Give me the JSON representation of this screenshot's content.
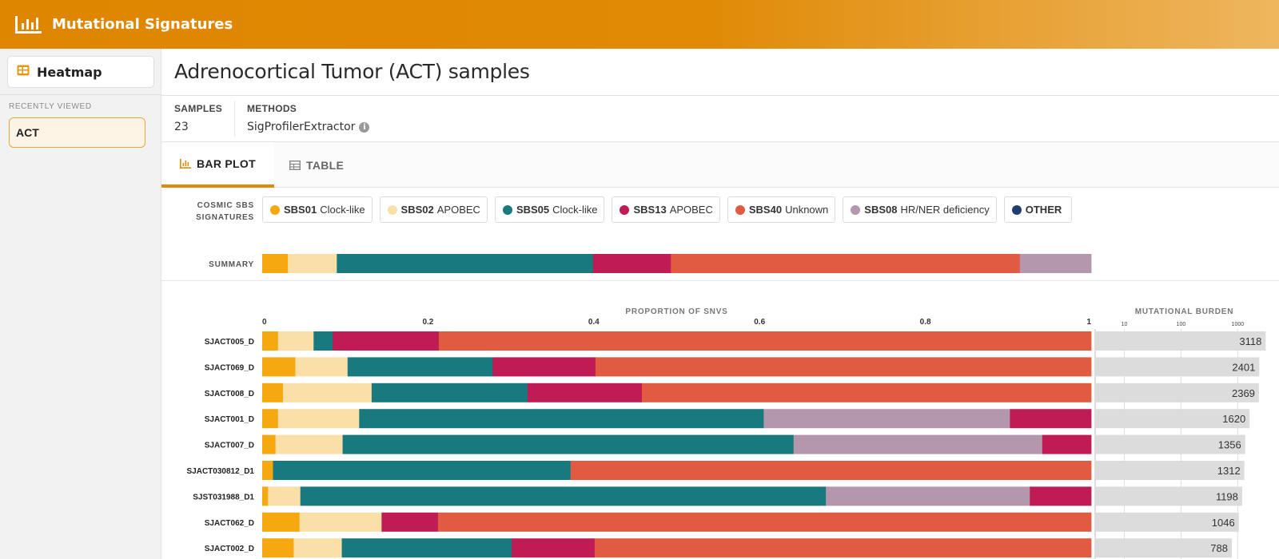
{
  "app": {
    "title": "Mutational Signatures",
    "logo_icon": "bar-chart-logo-icon"
  },
  "sidebar": {
    "heatmap_label": "Heatmap",
    "recent_label": "RECENTLY VIEWED",
    "recent_items": [
      "ACT"
    ]
  },
  "page": {
    "title": "Adrenocortical Tumor (ACT) samples"
  },
  "meta": {
    "samples_label": "SAMPLES",
    "samples_value": "23",
    "methods_label": "METHODS",
    "methods_value": "SigProfilerExtractor"
  },
  "tabs": {
    "bar_plot": "BAR PLOT",
    "table": "TABLE"
  },
  "legend": {
    "label_line1": "COSMIC SBS",
    "label_line2": "SIGNATURES",
    "items": [
      {
        "code": "SBS01",
        "name": "Clock-like",
        "color": "#f5a80f"
      },
      {
        "code": "SBS02",
        "name": "APOBEC",
        "color": "#fae0a8"
      },
      {
        "code": "SBS05",
        "name": "Clock-like",
        "color": "#187a7e"
      },
      {
        "code": "SBS13",
        "name": "APOBEC",
        "color": "#bf1b54"
      },
      {
        "code": "SBS40",
        "name": "Unknown",
        "color": "#e05b42"
      },
      {
        "code": "SBS08",
        "name": "HR/NER deficiency",
        "color": "#b497ad"
      },
      {
        "code": "OTHER",
        "name": "",
        "color": "#1f3d70"
      }
    ]
  },
  "chart_data": {
    "type": "bar",
    "orientation": "horizontal-stacked",
    "title": "",
    "summary_label": "SUMMARY",
    "xlabel": "PROPORTION OF SNVS",
    "xlim": [
      0,
      1
    ],
    "x_ticks": [
      "0",
      "0.2",
      "0.4",
      "0.6",
      "0.8",
      "1"
    ],
    "burden_label": "MUTATIONAL BURDEN",
    "burden_ticks": [
      "10",
      "100",
      "1000"
    ],
    "burden_scale": "log",
    "signature_order": [
      "SBS01",
      "SBS02",
      "SBS05",
      "SBS13",
      "SBS40",
      "SBS08",
      "OTHER"
    ],
    "colors": {
      "SBS01": "#f5a80f",
      "SBS02": "#fae0a8",
      "SBS05": "#187a7e",
      "SBS13": "#bf1b54",
      "SBS40": "#e05b42",
      "SBS08": "#b497ad",
      "OTHER": "#1f3d70"
    },
    "summary": [
      {
        "sig": "SBS01",
        "value": 0.031
      },
      {
        "sig": "SBS02",
        "value": 0.059
      },
      {
        "sig": "SBS05",
        "value": 0.309
      },
      {
        "sig": "SBS13",
        "value": 0.094
      },
      {
        "sig": "SBS40",
        "value": 0.421
      },
      {
        "sig": "SBS08",
        "value": 0.086
      }
    ],
    "samples": [
      {
        "name": "SJACT005_D",
        "burden": 3118,
        "segments": [
          {
            "sig": "SBS01",
            "value": 0.019
          },
          {
            "sig": "SBS02",
            "value": 0.043
          },
          {
            "sig": "SBS05",
            "value": 0.023
          },
          {
            "sig": "SBS13",
            "value": 0.128
          },
          {
            "sig": "SBS40",
            "value": 0.787
          }
        ]
      },
      {
        "name": "SJACT069_D",
        "burden": 2401,
        "segments": [
          {
            "sig": "SBS01",
            "value": 0.04
          },
          {
            "sig": "SBS02",
            "value": 0.063
          },
          {
            "sig": "SBS05",
            "value": 0.175
          },
          {
            "sig": "SBS13",
            "value": 0.124
          },
          {
            "sig": "SBS40",
            "value": 0.598
          }
        ]
      },
      {
        "name": "SJACT008_D",
        "burden": 2369,
        "segments": [
          {
            "sig": "SBS01",
            "value": 0.025
          },
          {
            "sig": "SBS02",
            "value": 0.107
          },
          {
            "sig": "SBS05",
            "value": 0.188
          },
          {
            "sig": "SBS13",
            "value": 0.138
          },
          {
            "sig": "SBS40",
            "value": 0.542
          }
        ]
      },
      {
        "name": "SJACT001_D",
        "burden": 1620,
        "segments": [
          {
            "sig": "SBS01",
            "value": 0.019
          },
          {
            "sig": "SBS02",
            "value": 0.098
          },
          {
            "sig": "SBS05",
            "value": 0.488
          },
          {
            "sig": "SBS08",
            "value": 0.297
          },
          {
            "sig": "SBS13",
            "value": 0.098
          }
        ]
      },
      {
        "name": "SJACT007_D",
        "burden": 1356,
        "segments": [
          {
            "sig": "SBS01",
            "value": 0.016
          },
          {
            "sig": "SBS02",
            "value": 0.081
          },
          {
            "sig": "SBS05",
            "value": 0.544
          },
          {
            "sig": "SBS08",
            "value": 0.3
          },
          {
            "sig": "SBS13",
            "value": 0.059
          }
        ]
      },
      {
        "name": "SJACT030812_D1",
        "burden": 1312,
        "segments": [
          {
            "sig": "SBS01",
            "value": 0.013
          },
          {
            "sig": "SBS05",
            "value": 0.359
          },
          {
            "sig": "SBS40",
            "value": 0.628
          }
        ]
      },
      {
        "name": "SJST031988_D1",
        "burden": 1198,
        "segments": [
          {
            "sig": "SBS01",
            "value": 0.007
          },
          {
            "sig": "SBS02",
            "value": 0.039
          },
          {
            "sig": "SBS05",
            "value": 0.634
          },
          {
            "sig": "SBS08",
            "value": 0.246
          },
          {
            "sig": "SBS13",
            "value": 0.074
          }
        ]
      },
      {
        "name": "SJACT062_D",
        "burden": 1046,
        "segments": [
          {
            "sig": "SBS01",
            "value": 0.045
          },
          {
            "sig": "SBS02",
            "value": 0.099
          },
          {
            "sig": "SBS13",
            "value": 0.068
          },
          {
            "sig": "SBS40",
            "value": 0.788
          }
        ]
      },
      {
        "name": "SJACT002_D",
        "burden": 788,
        "segments": [
          {
            "sig": "SBS01",
            "value": 0.038
          },
          {
            "sig": "SBS02",
            "value": 0.058
          },
          {
            "sig": "SBS05",
            "value": 0.205
          },
          {
            "sig": "SBS13",
            "value": 0.1
          },
          {
            "sig": "SBS40",
            "value": 0.599
          }
        ]
      }
    ]
  }
}
